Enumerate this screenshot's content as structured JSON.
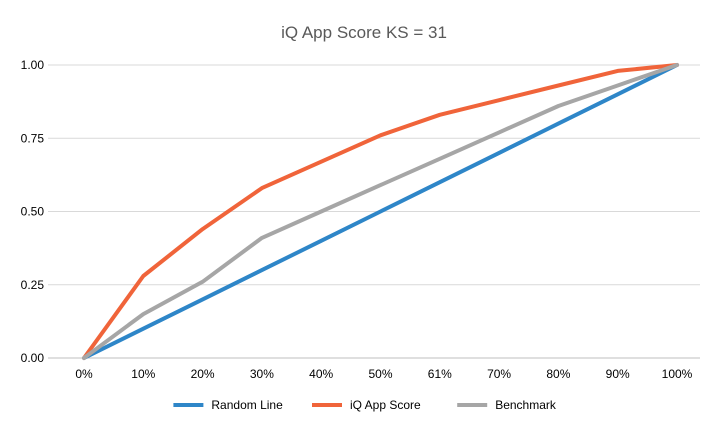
{
  "chart_data": {
    "type": "line",
    "title": "iQ App Score KS = 31",
    "xlabel": "",
    "ylabel": "",
    "categories": [
      "0%",
      "10%",
      "20%",
      "30%",
      "40%",
      "50%",
      "61%",
      "70%",
      "80%",
      "90%",
      "100%"
    ],
    "ylim": [
      0,
      1
    ],
    "yticks": [
      "0.00",
      "0.25",
      "0.50",
      "0.75",
      "1.00"
    ],
    "grid": true,
    "legend_position": "bottom",
    "series": [
      {
        "name": "Random Line",
        "color": "#2E86C8",
        "values": [
          0.0,
          0.1,
          0.2,
          0.3,
          0.4,
          0.5,
          0.6,
          0.7,
          0.8,
          0.9,
          1.0
        ]
      },
      {
        "name": "iQ App Score",
        "color": "#F0643A",
        "values": [
          0.0,
          0.28,
          0.44,
          0.58,
          0.67,
          0.76,
          0.83,
          0.88,
          0.93,
          0.98,
          1.0
        ]
      },
      {
        "name": "Benchmark",
        "color": "#A6A6A6",
        "values": [
          0.0,
          0.15,
          0.26,
          0.41,
          0.5,
          0.59,
          0.68,
          0.77,
          0.86,
          0.93,
          1.0
        ]
      }
    ]
  }
}
